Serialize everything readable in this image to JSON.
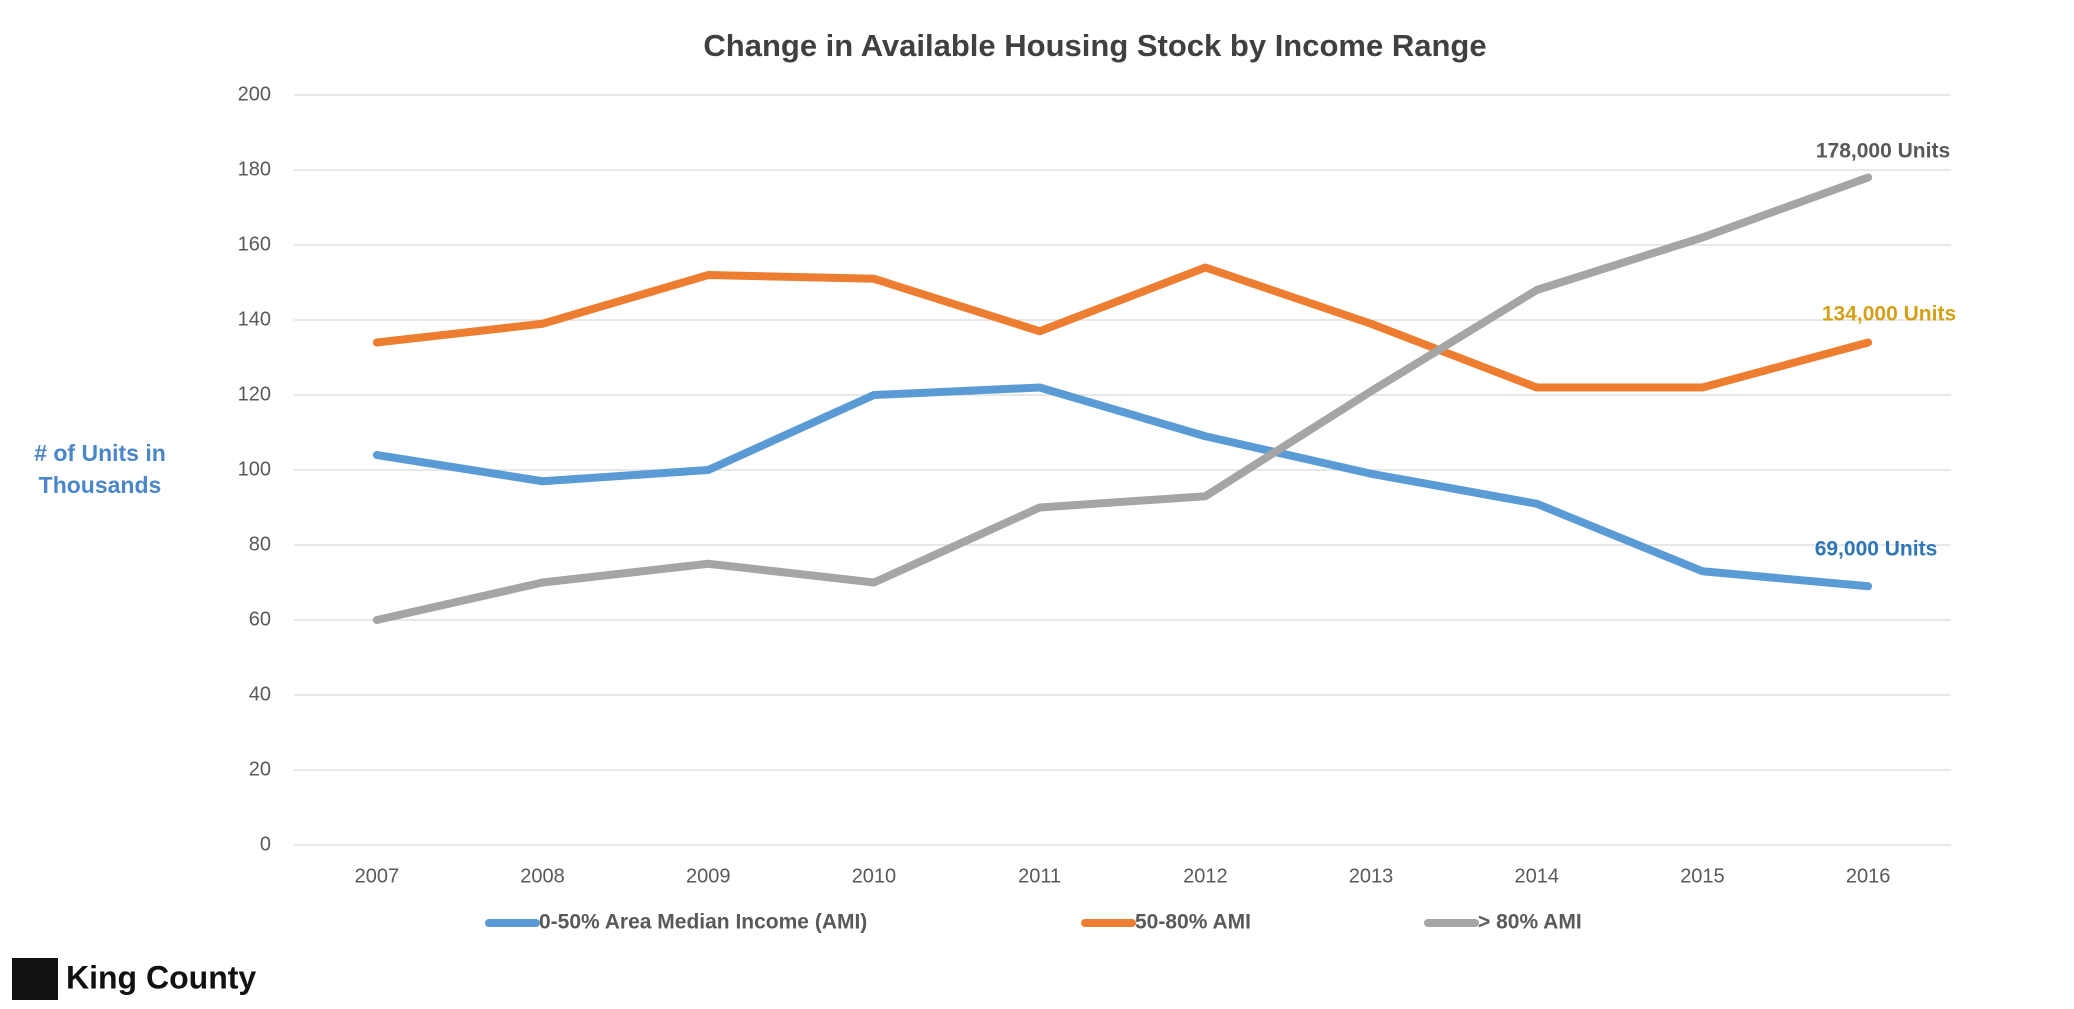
{
  "chart_data": {
    "type": "line",
    "title": "Change in Available Housing Stock by Income Range",
    "y_label": [
      "# of Units in",
      "Thousands"
    ],
    "categories": [
      "2007",
      "2008",
      "2009",
      "2010",
      "2011",
      "2012",
      "2013",
      "2014",
      "2015",
      "2016"
    ],
    "series": [
      {
        "name": "0-50% Area Median Income (AMI)",
        "color": "#5b9bd5",
        "values": [
          104,
          97,
          100,
          120,
          122,
          109,
          99,
          91,
          73,
          69
        ]
      },
      {
        "name": "50-80% AMI",
        "color": "#ed7d31",
        "values": [
          134,
          139,
          152,
          151,
          137,
          154,
          139,
          122,
          122,
          134
        ]
      },
      {
        "name": "> 80% AMI",
        "color": "#a5a5a5",
        "values": [
          60,
          70,
          75,
          70,
          90,
          93,
          121,
          148,
          162,
          178
        ]
      }
    ],
    "annotations": [
      {
        "text": "178,000 Units",
        "color": "#595959"
      },
      {
        "text": "134,000 Units",
        "color": "#d4a017"
      },
      {
        "text": "69,000 Units",
        "color": "#2e75b6"
      }
    ],
    "ylim": [
      0,
      200
    ],
    "yticks": [
      0,
      20,
      40,
      60,
      80,
      100,
      120,
      140,
      160,
      180,
      200
    ],
    "grid": true
  },
  "logo": "King County"
}
